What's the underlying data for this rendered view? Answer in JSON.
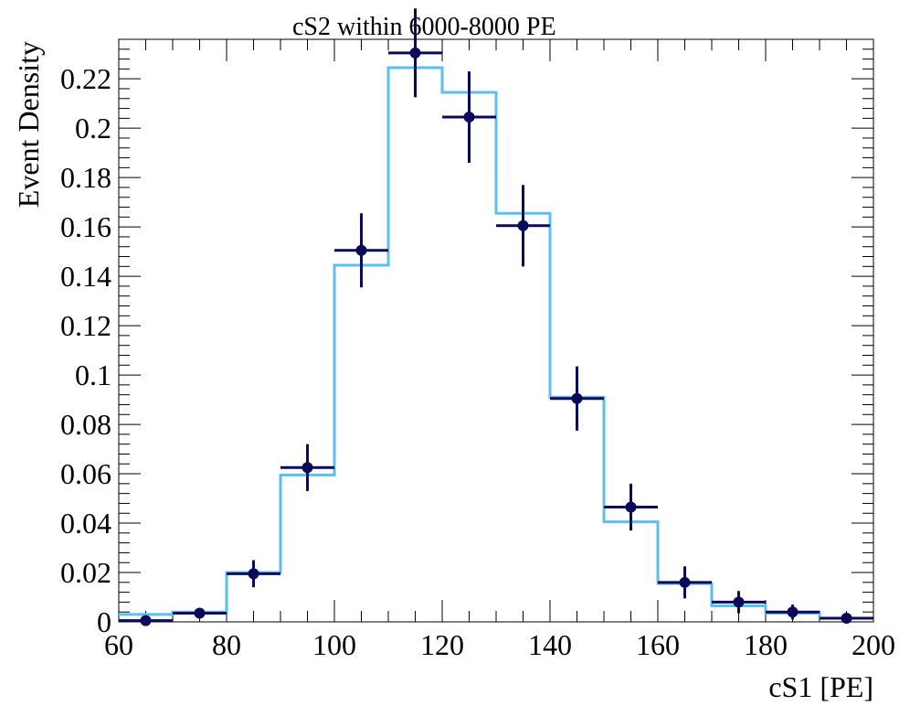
{
  "chart_data": {
    "type": "bar",
    "title": "cS2 within 6000-8000 PE",
    "xlabel": "cS1  [PE]",
    "ylabel": "Event Density",
    "xlim": [
      60,
      200
    ],
    "ylim": [
      0,
      0.236
    ],
    "x_ticks": [
      60,
      80,
      100,
      120,
      140,
      160,
      180,
      200
    ],
    "x_tick_labels": [
      "60",
      "80",
      "100",
      "120",
      "140",
      "160",
      "180",
      "200"
    ],
    "y_ticks": [
      0,
      0.02,
      0.04,
      0.06,
      0.08,
      0.1,
      0.12,
      0.14,
      0.16,
      0.18,
      0.2,
      0.22
    ],
    "y_tick_labels": [
      "0",
      "0.02",
      "0.04",
      "0.06",
      "0.08",
      "0.1",
      "0.12",
      "0.14",
      "0.16",
      "0.18",
      "0.2",
      "0.22"
    ],
    "grid": false,
    "bin_edges": [
      60,
      70,
      80,
      90,
      100,
      110,
      120,
      130,
      140,
      150,
      160,
      170,
      180,
      190,
      200
    ],
    "series": [
      {
        "kind": "step-histogram",
        "color": "#5bc0f0",
        "values": [
          0.003,
          0.004,
          0.02,
          0.0595,
          0.1445,
          0.2245,
          0.2145,
          0.1655,
          0.091,
          0.0405,
          0.0155,
          0.0065,
          0.0035,
          0.0015
        ]
      },
      {
        "kind": "points-with-errors",
        "color": "#0a0a5a",
        "x": [
          65,
          75,
          85,
          95,
          105,
          115,
          125,
          135,
          145,
          155,
          165,
          175,
          185,
          195
        ],
        "values": [
          0.0005,
          0.0035,
          0.0195,
          0.0625,
          0.1505,
          0.2305,
          0.2045,
          0.1605,
          0.0905,
          0.0465,
          0.016,
          0.008,
          0.004,
          0.0015
        ],
        "y_err": [
          0.0005,
          0.0015,
          0.0055,
          0.0095,
          0.015,
          0.018,
          0.0185,
          0.0165,
          0.013,
          0.0095,
          0.0065,
          0.0045,
          0.003,
          0.0015
        ]
      }
    ]
  }
}
